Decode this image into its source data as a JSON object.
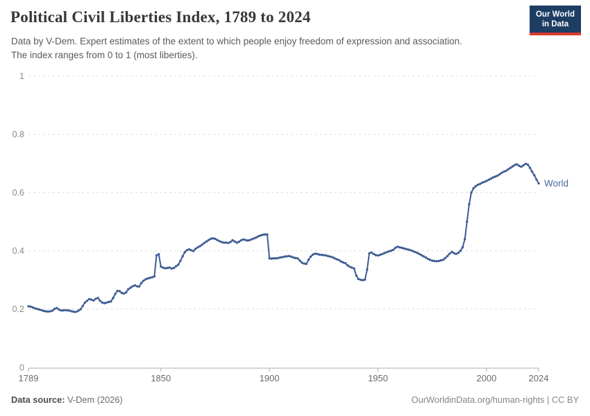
{
  "header": {
    "title": "Political Civil Liberties Index, 1789 to 2024",
    "subtitle_line1": "Data by V-Dem. Expert estimates of the extent to which people enjoy freedom of expression and association.",
    "subtitle_line2": "The index ranges from 0 to 1 (most liberties).",
    "logo": {
      "line1": "Our World",
      "line2": "in Data"
    }
  },
  "footer": {
    "source_label": "Data source:",
    "source_value": "V-Dem (2026)",
    "credit": "OurWorldinData.org/human-rights | CC BY"
  },
  "appearance": {
    "logo_bg": "#1d3d63",
    "logo_stripe": "#dc3a2f",
    "line_color": "#3e5c92",
    "series_label_color": "#4c6a9f",
    "gridline_color": "#dcdcdc",
    "axis_color": "#adadad",
    "y_tick_label_color": "#8b8b8b",
    "x_tick_label_color": "#696969"
  },
  "chart_data": {
    "type": "line",
    "title": "Political Civil Liberties Index, 1789 to 2024",
    "xlabel": "",
    "ylabel": "",
    "xlim": [
      1789,
      2024
    ],
    "ylim": [
      0,
      1
    ],
    "x_ticks": [
      1789,
      1850,
      1900,
      1950,
      2000,
      2024
    ],
    "y_ticks": [
      0,
      0.2,
      0.4,
      0.6,
      0.8,
      1
    ],
    "grid": "horizontal-dashed",
    "legend_position": "end-of-line-label",
    "end_label": "World",
    "series": [
      {
        "name": "World",
        "points": [
          [
            1789,
            0.209
          ],
          [
            1790,
            0.208
          ],
          [
            1791,
            0.205
          ],
          [
            1792,
            0.202
          ],
          [
            1793,
            0.2
          ],
          [
            1794,
            0.198
          ],
          [
            1795,
            0.196
          ],
          [
            1796,
            0.193
          ],
          [
            1797,
            0.192
          ],
          [
            1798,
            0.191
          ],
          [
            1799,
            0.192
          ],
          [
            1800,
            0.194
          ],
          [
            1801,
            0.2
          ],
          [
            1802,
            0.203
          ],
          [
            1803,
            0.198
          ],
          [
            1804,
            0.195
          ],
          [
            1805,
            0.195
          ],
          [
            1806,
            0.196
          ],
          [
            1807,
            0.195
          ],
          [
            1808,
            0.194
          ],
          [
            1809,
            0.192
          ],
          [
            1810,
            0.19
          ],
          [
            1811,
            0.19
          ],
          [
            1812,
            0.194
          ],
          [
            1813,
            0.199
          ],
          [
            1814,
            0.21
          ],
          [
            1815,
            0.222
          ],
          [
            1816,
            0.228
          ],
          [
            1817,
            0.234
          ],
          [
            1818,
            0.232
          ],
          [
            1819,
            0.229
          ],
          [
            1820,
            0.235
          ],
          [
            1821,
            0.238
          ],
          [
            1822,
            0.228
          ],
          [
            1823,
            0.222
          ],
          [
            1824,
            0.22
          ],
          [
            1825,
            0.222
          ],
          [
            1826,
            0.224
          ],
          [
            1827,
            0.226
          ],
          [
            1828,
            0.238
          ],
          [
            1829,
            0.252
          ],
          [
            1830,
            0.262
          ],
          [
            1831,
            0.261
          ],
          [
            1832,
            0.255
          ],
          [
            1833,
            0.253
          ],
          [
            1834,
            0.257
          ],
          [
            1835,
            0.268
          ],
          [
            1836,
            0.273
          ],
          [
            1837,
            0.278
          ],
          [
            1838,
            0.281
          ],
          [
            1839,
            0.278
          ],
          [
            1840,
            0.277
          ],
          [
            1841,
            0.289
          ],
          [
            1842,
            0.297
          ],
          [
            1843,
            0.302
          ],
          [
            1844,
            0.305
          ],
          [
            1845,
            0.307
          ],
          [
            1846,
            0.309
          ],
          [
            1847,
            0.312
          ],
          [
            1848,
            0.384
          ],
          [
            1849,
            0.388
          ],
          [
            1850,
            0.346
          ],
          [
            1851,
            0.342
          ],
          [
            1852,
            0.34
          ],
          [
            1853,
            0.341
          ],
          [
            1854,
            0.342
          ],
          [
            1855,
            0.339
          ],
          [
            1856,
            0.341
          ],
          [
            1857,
            0.347
          ],
          [
            1858,
            0.352
          ],
          [
            1859,
            0.365
          ],
          [
            1860,
            0.381
          ],
          [
            1861,
            0.395
          ],
          [
            1862,
            0.402
          ],
          [
            1863,
            0.405
          ],
          [
            1864,
            0.402
          ],
          [
            1865,
            0.399
          ],
          [
            1866,
            0.407
          ],
          [
            1867,
            0.412
          ],
          [
            1868,
            0.416
          ],
          [
            1869,
            0.421
          ],
          [
            1870,
            0.427
          ],
          [
            1871,
            0.432
          ],
          [
            1872,
            0.437
          ],
          [
            1873,
            0.441
          ],
          [
            1874,
            0.443
          ],
          [
            1875,
            0.441
          ],
          [
            1876,
            0.437
          ],
          [
            1877,
            0.433
          ],
          [
            1878,
            0.43
          ],
          [
            1879,
            0.428
          ],
          [
            1880,
            0.428
          ],
          [
            1881,
            0.427
          ],
          [
            1882,
            0.43
          ],
          [
            1883,
            0.436
          ],
          [
            1884,
            0.432
          ],
          [
            1885,
            0.428
          ],
          [
            1886,
            0.431
          ],
          [
            1887,
            0.436
          ],
          [
            1888,
            0.439
          ],
          [
            1889,
            0.437
          ],
          [
            1890,
            0.435
          ],
          [
            1891,
            0.437
          ],
          [
            1892,
            0.44
          ],
          [
            1893,
            0.443
          ],
          [
            1894,
            0.446
          ],
          [
            1895,
            0.45
          ],
          [
            1896,
            0.453
          ],
          [
            1897,
            0.455
          ],
          [
            1898,
            0.456
          ],
          [
            1899,
            0.456
          ],
          [
            1900,
            0.374
          ],
          [
            1901,
            0.373
          ],
          [
            1902,
            0.374
          ],
          [
            1903,
            0.374
          ],
          [
            1904,
            0.375
          ],
          [
            1905,
            0.377
          ],
          [
            1906,
            0.378
          ],
          [
            1907,
            0.38
          ],
          [
            1908,
            0.381
          ],
          [
            1909,
            0.382
          ],
          [
            1910,
            0.38
          ],
          [
            1911,
            0.377
          ],
          [
            1912,
            0.375
          ],
          [
            1913,
            0.374
          ],
          [
            1914,
            0.366
          ],
          [
            1915,
            0.359
          ],
          [
            1916,
            0.356
          ],
          [
            1917,
            0.355
          ],
          [
            1918,
            0.369
          ],
          [
            1919,
            0.38
          ],
          [
            1920,
            0.387
          ],
          [
            1921,
            0.39
          ],
          [
            1922,
            0.389
          ],
          [
            1923,
            0.387
          ],
          [
            1924,
            0.386
          ],
          [
            1925,
            0.385
          ],
          [
            1926,
            0.384
          ],
          [
            1927,
            0.382
          ],
          [
            1928,
            0.38
          ],
          [
            1929,
            0.378
          ],
          [
            1930,
            0.374
          ],
          [
            1931,
            0.371
          ],
          [
            1932,
            0.368
          ],
          [
            1933,
            0.363
          ],
          [
            1934,
            0.36
          ],
          [
            1935,
            0.357
          ],
          [
            1936,
            0.35
          ],
          [
            1937,
            0.345
          ],
          [
            1938,
            0.342
          ],
          [
            1939,
            0.339
          ],
          [
            1940,
            0.315
          ],
          [
            1941,
            0.303
          ],
          [
            1942,
            0.3
          ],
          [
            1943,
            0.299
          ],
          [
            1944,
            0.301
          ],
          [
            1945,
            0.335
          ],
          [
            1946,
            0.391
          ],
          [
            1947,
            0.394
          ],
          [
            1948,
            0.389
          ],
          [
            1949,
            0.385
          ],
          [
            1950,
            0.384
          ],
          [
            1951,
            0.386
          ],
          [
            1952,
            0.389
          ],
          [
            1953,
            0.392
          ],
          [
            1954,
            0.395
          ],
          [
            1955,
            0.398
          ],
          [
            1956,
            0.4
          ],
          [
            1957,
            0.403
          ],
          [
            1958,
            0.41
          ],
          [
            1959,
            0.414
          ],
          [
            1960,
            0.412
          ],
          [
            1961,
            0.41
          ],
          [
            1962,
            0.408
          ],
          [
            1963,
            0.406
          ],
          [
            1964,
            0.404
          ],
          [
            1965,
            0.402
          ],
          [
            1966,
            0.399
          ],
          [
            1967,
            0.396
          ],
          [
            1968,
            0.393
          ],
          [
            1969,
            0.389
          ],
          [
            1970,
            0.385
          ],
          [
            1971,
            0.381
          ],
          [
            1972,
            0.377
          ],
          [
            1973,
            0.372
          ],
          [
            1974,
            0.369
          ],
          [
            1975,
            0.366
          ],
          [
            1976,
            0.365
          ],
          [
            1977,
            0.364
          ],
          [
            1978,
            0.365
          ],
          [
            1979,
            0.367
          ],
          [
            1980,
            0.369
          ],
          [
            1981,
            0.375
          ],
          [
            1982,
            0.382
          ],
          [
            1983,
            0.39
          ],
          [
            1984,
            0.396
          ],
          [
            1985,
            0.392
          ],
          [
            1986,
            0.389
          ],
          [
            1987,
            0.393
          ],
          [
            1988,
            0.4
          ],
          [
            1989,
            0.412
          ],
          [
            1990,
            0.44
          ],
          [
            1991,
            0.5
          ],
          [
            1992,
            0.56
          ],
          [
            1993,
            0.6
          ],
          [
            1994,
            0.615
          ],
          [
            1995,
            0.622
          ],
          [
            1996,
            0.627
          ],
          [
            1997,
            0.63
          ],
          [
            1998,
            0.634
          ],
          [
            1999,
            0.637
          ],
          [
            2000,
            0.64
          ],
          [
            2001,
            0.644
          ],
          [
            2002,
            0.648
          ],
          [
            2003,
            0.652
          ],
          [
            2004,
            0.655
          ],
          [
            2005,
            0.658
          ],
          [
            2006,
            0.663
          ],
          [
            2007,
            0.668
          ],
          [
            2008,
            0.672
          ],
          [
            2009,
            0.675
          ],
          [
            2010,
            0.68
          ],
          [
            2011,
            0.685
          ],
          [
            2012,
            0.69
          ],
          [
            2013,
            0.695
          ],
          [
            2014,
            0.697
          ],
          [
            2015,
            0.692
          ],
          [
            2016,
            0.689
          ],
          [
            2017,
            0.694
          ],
          [
            2018,
            0.699
          ],
          [
            2019,
            0.696
          ],
          [
            2020,
            0.685
          ],
          [
            2021,
            0.672
          ],
          [
            2022,
            0.66
          ],
          [
            2023,
            0.645
          ],
          [
            2024,
            0.632
          ]
        ]
      }
    ]
  }
}
